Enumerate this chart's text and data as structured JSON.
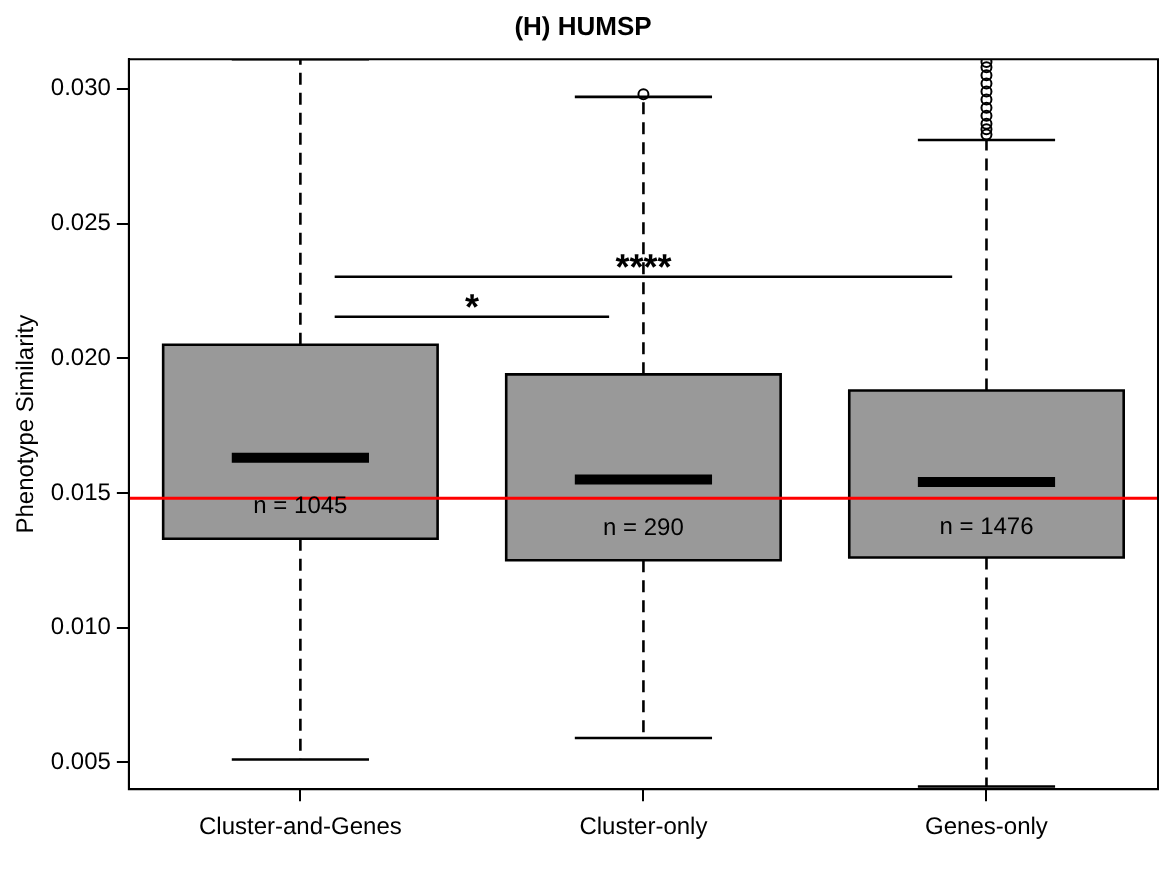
{
  "chart_data": {
    "type": "box",
    "title": "(H) HUMSP",
    "ylabel": "Phenotype Similarity",
    "categories": [
      "Cluster-and-Genes",
      "Cluster-only",
      "Genes-only"
    ],
    "color": "#999999",
    "boxes": [
      {
        "low": 0.0051,
        "q1": 0.0133,
        "median": 0.0163,
        "q3": 0.0205,
        "high": 0.0311
      },
      {
        "low": 0.0059,
        "q1": 0.0125,
        "median": 0.0155,
        "q3": 0.0194,
        "high": 0.0297,
        "outliers": [
          0.0298
        ]
      },
      {
        "low": 0.0041,
        "q1": 0.0126,
        "median": 0.0154,
        "q3": 0.0188,
        "high": 0.0281,
        "outliers": [
          0.0283,
          0.0285,
          0.0287,
          0.029,
          0.0293,
          0.0296,
          0.0299,
          0.0302,
          0.0305,
          0.0308,
          0.031
        ]
      }
    ],
    "ylim": [
      0.004,
      0.0311
    ],
    "yticks": [
      0.005,
      {
        "value": 0.01,
        "label": "0.010"
      },
      0.015,
      {
        "value": 0.02,
        "label": "0.020"
      },
      0.025,
      {
        "value": 0.03,
        "label": "0.030"
      }
    ],
    "grid": false,
    "legend": false,
    "ref_lines": [
      {
        "axis": "y",
        "value": 0.0148,
        "color": "#ff0000"
      }
    ],
    "annotations": [
      "n = 1045",
      "n = 290",
      "n = 1476",
      "*",
      "****"
    ]
  }
}
